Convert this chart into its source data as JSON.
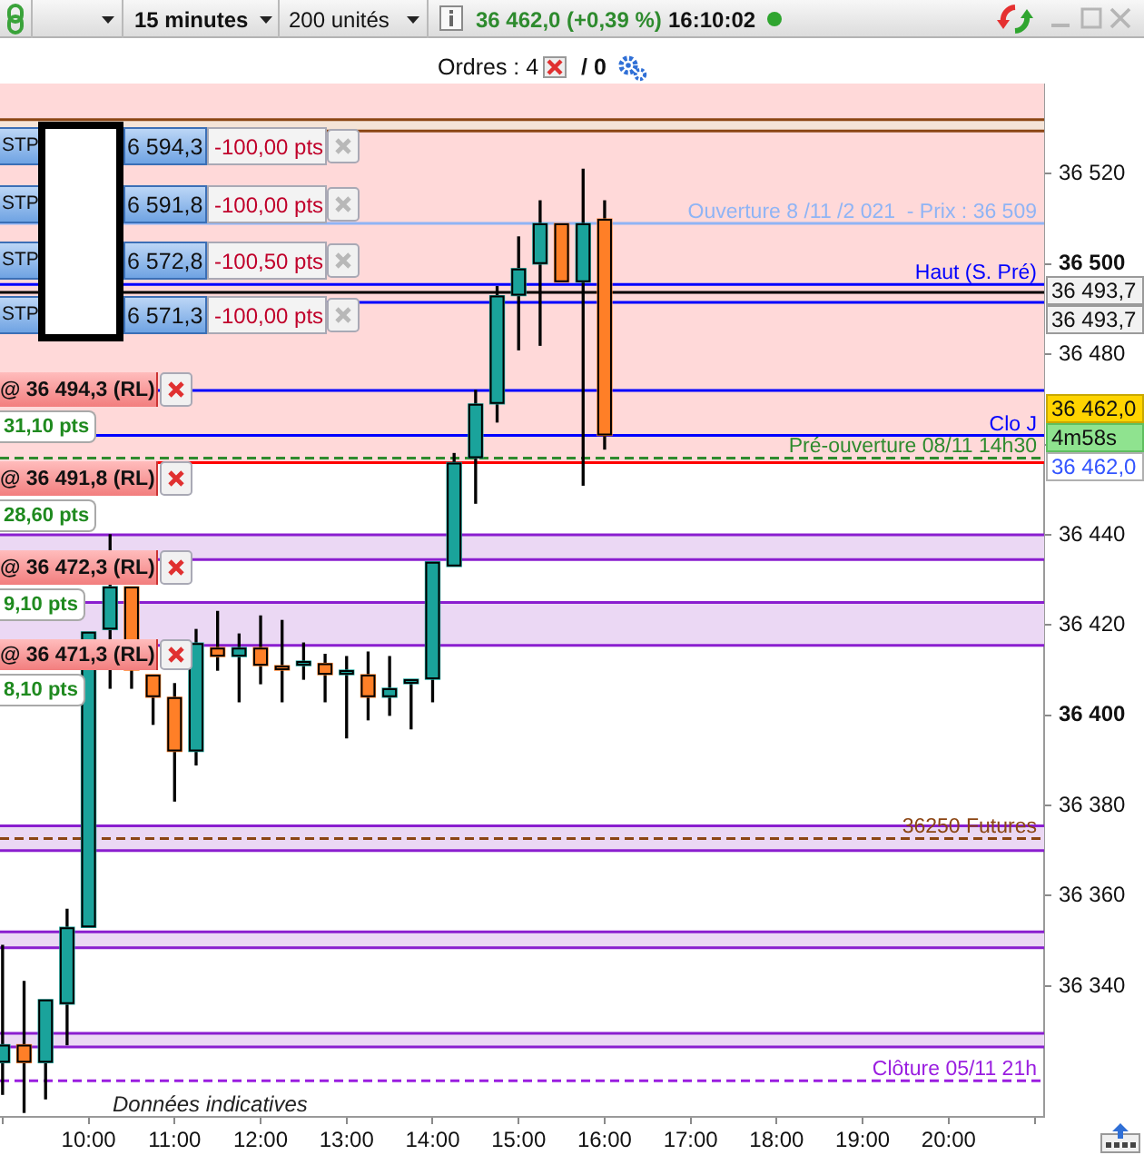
{
  "chart_data": {
    "type": "candlestick",
    "x": [
      9,
      9.25,
      9.5,
      9.75,
      10,
      10.25,
      10.5,
      10.75,
      11,
      11.25,
      11.5,
      11.75,
      12,
      12.25,
      12.5,
      12.75,
      13,
      13.25,
      13.5,
      13.75,
      14,
      14.25,
      14.5,
      14.75,
      15,
      15.25,
      15.5,
      15.75,
      16
    ],
    "ohlc": [
      [
        36323,
        36349,
        36316,
        36327
      ],
      [
        36327,
        36341,
        36312,
        36323
      ],
      [
        36323,
        36337,
        36315,
        36337
      ],
      [
        36336,
        36357,
        36327,
        36353
      ],
      [
        36353,
        36418.5,
        36353,
        36418.5
      ],
      [
        36419,
        36440,
        36406,
        36428.5
      ],
      [
        36428.5,
        36428.5,
        36406,
        36410
      ],
      [
        36409,
        36409,
        36398,
        36404
      ],
      [
        36404,
        36407,
        36381,
        36392
      ],
      [
        36392,
        36419,
        36389,
        36416
      ],
      [
        36415,
        36423,
        36410,
        36413
      ],
      [
        36413,
        36418,
        36403,
        36415
      ],
      [
        36415,
        36422,
        36407,
        36411
      ],
      [
        36411,
        36421,
        36403,
        36410
      ],
      [
        36411,
        36416,
        36408,
        36412
      ],
      [
        36411.5,
        36413.5,
        36403,
        36409
      ],
      [
        36409,
        36413,
        36395,
        36410
      ],
      [
        36409,
        36414,
        36399,
        36404
      ],
      [
        36404,
        36413,
        36400,
        36406
      ],
      [
        36407,
        36408,
        36397,
        36408
      ],
      [
        36408,
        36434,
        36403,
        36434
      ],
      [
        36433,
        36458,
        36433,
        36456
      ],
      [
        36457,
        36472,
        36447,
        36469
      ],
      [
        36469,
        36495,
        36465,
        36493
      ],
      [
        36493,
        36506,
        36481,
        36499
      ],
      [
        36500,
        36514,
        36482,
        36509
      ],
      [
        36509,
        36509,
        36496,
        36496
      ],
      [
        36496,
        36521,
        36451,
        36509
      ],
      [
        36510,
        36514,
        36459,
        36462
      ]
    ],
    "colors": [
      "#1aa39b",
      "#ff7f27",
      "#1aa39b",
      "#1aa39b",
      "#1aa39b",
      "#1aa39b",
      "#ff7f27",
      "#ff7f27",
      "#ff7f27",
      "#1aa39b",
      "#ff7f27",
      "#1aa39b",
      "#ff7f27",
      "#ff7f27",
      "#1aa39b",
      "#ff7f27",
      "#1aa39b",
      "#ff7f27",
      "#1aa39b",
      "#1aa39b",
      "#1aa39b",
      "#1aa39b",
      "#1aa39b",
      "#1aa39b",
      "#1aa39b",
      "#1aa39b",
      "#ff7f27",
      "#1aa39b",
      "#ff7f27"
    ],
    "xlim": [
      8.97,
      21.11
    ],
    "xticks": [
      {
        "value": 9,
        "label": null
      },
      {
        "value": 10,
        "label": "10:00"
      },
      {
        "value": 11,
        "label": "11:00"
      },
      {
        "value": 12,
        "label": "12:00"
      },
      {
        "value": 13,
        "label": "13:00"
      },
      {
        "value": 14,
        "label": "14:00"
      },
      {
        "value": 15,
        "label": "15:00"
      },
      {
        "value": 16,
        "label": "16:00"
      },
      {
        "value": 17,
        "label": "17:00"
      },
      {
        "value": 18,
        "label": "18:00"
      },
      {
        "value": 19,
        "label": "19:00"
      },
      {
        "value": 20,
        "label": "20:00"
      },
      {
        "value": 21,
        "label": null
      }
    ],
    "ylim": [
      36311,
      36540
    ],
    "yticks": [
      {
        "value": 36340,
        "label": "36 340"
      },
      {
        "value": 36360,
        "label": "36 360"
      },
      {
        "value": 36380,
        "label": "36 380"
      },
      {
        "value": 36400,
        "label": "36 400"
      },
      {
        "value": 36420,
        "label": "36 420"
      },
      {
        "value": 36440,
        "label": "36 440"
      },
      {
        "value": 36460,
        "label": null
      },
      {
        "value": 36480,
        "label": "36 480"
      },
      {
        "value": 36500,
        "label": "36 500"
      },
      {
        "value": 36520,
        "label": "36 520"
      }
    ],
    "bands": [
      {
        "axis": "y",
        "from": 36456,
        "to": 36540,
        "color": "#ffd9d9"
      },
      {
        "axis": "y",
        "from": 36529.5,
        "to": 36532,
        "color": "#f4e4d8"
      },
      {
        "axis": "y",
        "from": 36434.5,
        "to": 36440,
        "color": "#ebd8f4"
      },
      {
        "axis": "y",
        "from": 36415.5,
        "to": 36425,
        "color": "#ebd8f4"
      },
      {
        "axis": "y",
        "from": 36370,
        "to": 36375.5,
        "color": "#ebd8f4"
      },
      {
        "axis": "y",
        "from": 36348.5,
        "to": 36352,
        "color": "#ebd8f4"
      },
      {
        "axis": "y",
        "from": 36326.5,
        "to": 36329.5,
        "color": "#ebd8f4"
      }
    ],
    "ref_lines": [
      {
        "axis": "y",
        "value": 36532,
        "color": "#8b4513"
      },
      {
        "axis": "y",
        "value": 36529.5,
        "color": "#8b4513"
      },
      {
        "axis": "y",
        "value": 36509,
        "label": "Ouverture 8 /11 /2 021  - Prix : 36 509",
        "color": "#8fb4f5"
      },
      {
        "axis": "y",
        "value": 36495.5,
        "label": "Haut (S. Pré)",
        "color": "#0000ff"
      },
      {
        "axis": "y",
        "value": 36493.7,
        "color": "#000000"
      },
      {
        "axis": "y",
        "value": 36491.5,
        "color": "#0000ff"
      },
      {
        "axis": "y",
        "value": 36472,
        "color": "#0000ff"
      },
      {
        "axis": "y",
        "value": 36462,
        "label": "Clo J",
        "color": "#0000ff"
      },
      {
        "axis": "y",
        "value": 36457,
        "label": "Pré-ouverture 08/11 14h30",
        "color": "#2e8b2e",
        "line_style": "dashed"
      },
      {
        "axis": "y",
        "value": 36456,
        "color": "#ff0000"
      },
      {
        "axis": "y",
        "value": 36440,
        "color": "#8a1ecf"
      },
      {
        "axis": "y",
        "value": 36434.5,
        "color": "#8a1ecf"
      },
      {
        "axis": "y",
        "value": 36425,
        "color": "#8a1ecf"
      },
      {
        "axis": "y",
        "value": 36415.5,
        "color": "#8a1ecf"
      },
      {
        "axis": "y",
        "value": 36375.5,
        "color": "#8a1ecf"
      },
      {
        "axis": "y",
        "value": 36372.7,
        "label": "36250 Futures",
        "color": "#8b4513",
        "line_style": "dashed"
      },
      {
        "axis": "y",
        "value": 36370,
        "color": "#8a1ecf"
      },
      {
        "axis": "y",
        "value": 36352,
        "color": "#8a1ecf"
      },
      {
        "axis": "y",
        "value": 36348.5,
        "color": "#8a1ecf"
      },
      {
        "axis": "y",
        "value": 36329.5,
        "color": "#8a1ecf"
      },
      {
        "axis": "y",
        "value": 36326.5,
        "color": "#8a1ecf"
      },
      {
        "axis": "y",
        "value": 36319,
        "label": "Clôture 05/11 21h",
        "color": "#9a1ee0",
        "line_style": "dashed"
      }
    ],
    "annotations": [
      "15 minutes",
      "200 unités",
      "36 462,0 (+0,39 %)",
      "16:10:02",
      "Ordres : 4",
      "/ 0",
      "STP",
      "6 594,3",
      "-100,00 pts",
      "STP",
      "6 591,8",
      "-100,00 pts",
      "STP",
      "6 572,8",
      "-100,50 pts",
      "STP",
      "6 571,3",
      "-100,00 pts",
      "@ 36 494,3 (RL)",
      "31,10 pts",
      "@ 36 491,8 (RL)",
      "28,60 pts",
      "@ 36 472,3 (RL)",
      "9,10 pts",
      "@ 36 471,3 (RL)",
      "8,10 pts",
      "Données indicatives",
      "36 493,7",
      "36 493,7",
      "36 462,0",
      "4m58s",
      "36 462,0"
    ]
  }
}
